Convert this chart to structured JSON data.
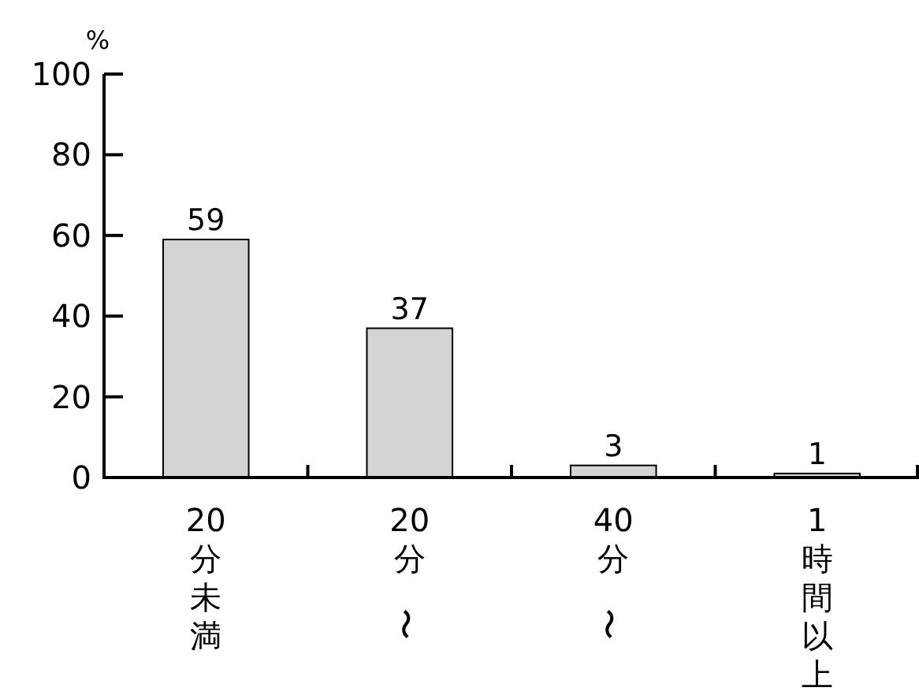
{
  "chart_data": {
    "type": "bar",
    "ylabel": "%",
    "categories": [
      "20分未満",
      "20分〜",
      "40分〜",
      "1時間以上"
    ],
    "values": [
      59,
      37,
      3,
      1
    ],
    "color": "#d4d4d4",
    "ylim": [
      0,
      100
    ],
    "yticks": [
      0,
      20,
      40,
      60,
      80,
      100
    ],
    "data_labels": true
  }
}
